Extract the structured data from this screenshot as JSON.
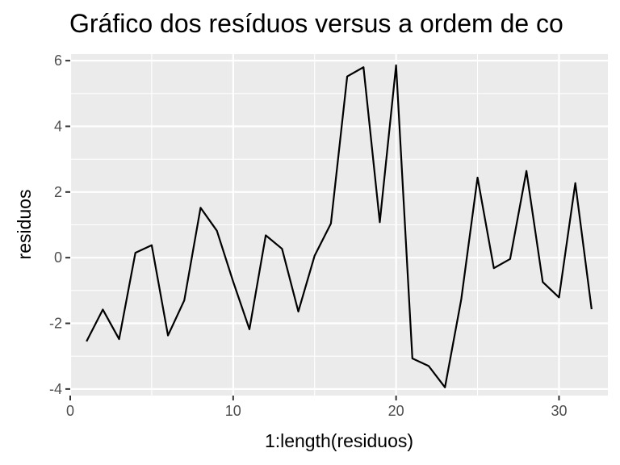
{
  "chart_data": {
    "type": "line",
    "title": "Gráfico dos resíduos versus a ordem de co",
    "xlabel": "1:length(residuos)",
    "ylabel": "residuos",
    "xlim": [
      0,
      33
    ],
    "ylim": [
      -4.2,
      6.2
    ],
    "x_ticks": [
      0,
      10,
      20,
      30
    ],
    "y_ticks": [
      -4,
      -2,
      0,
      2,
      4,
      6
    ],
    "x_tick_labels": [
      "0",
      "10",
      "20",
      "30"
    ],
    "y_tick_labels": [
      "-4",
      "-2",
      "0",
      "2",
      "4",
      "6"
    ],
    "grid": true,
    "panel_background": "#ebebeb",
    "grid_color": "#ffffff",
    "line_color": "#000000",
    "series": [
      {
        "x": [
          1,
          2,
          3,
          4,
          5,
          6,
          7,
          8,
          9,
          10,
          11,
          12,
          13,
          14,
          15,
          16,
          17,
          18,
          19,
          20,
          21,
          22,
          23,
          24,
          25,
          26,
          27,
          28,
          29,
          30,
          31,
          32
        ],
        "values": [
          -2.55,
          -1.58,
          -2.48,
          0.15,
          0.38,
          -2.37,
          -1.3,
          1.52,
          0.82,
          -0.73,
          -2.18,
          0.68,
          0.27,
          -1.64,
          0.06,
          1.04,
          5.52,
          5.8,
          1.08,
          5.86,
          -3.07,
          -3.3,
          -3.95,
          -1.27,
          2.44,
          -0.32,
          -0.04,
          2.64,
          -0.74,
          -1.21,
          2.27,
          -1.57
        ]
      }
    ]
  }
}
